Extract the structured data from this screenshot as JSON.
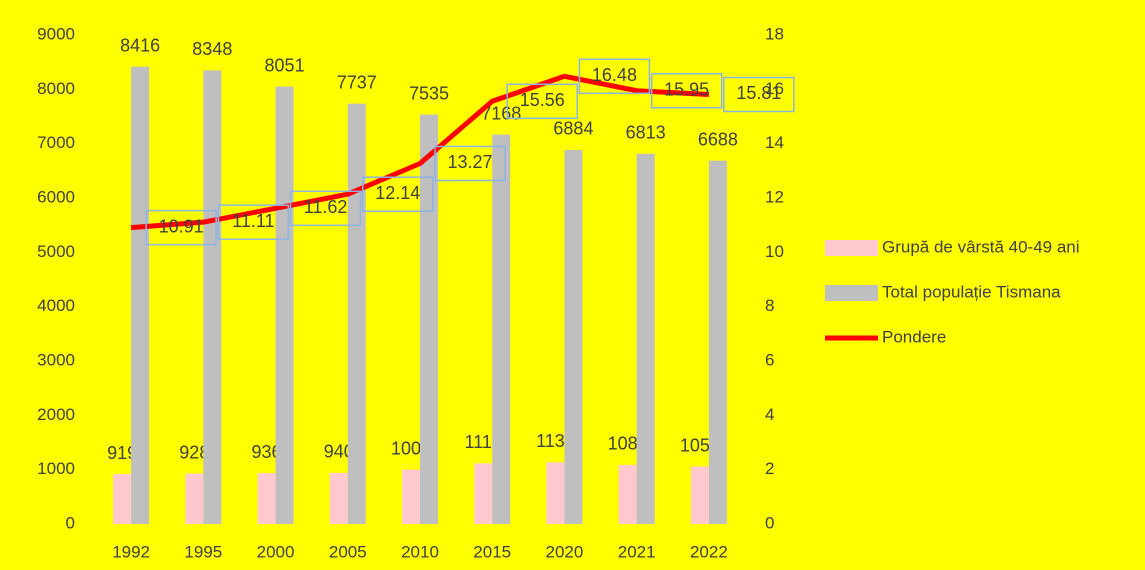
{
  "chart_data": {
    "type": "bar-line",
    "categories": [
      "1992",
      "1995",
      "2000",
      "2005",
      "2010",
      "2015",
      "2020",
      "2021",
      "2022"
    ],
    "series": [
      {
        "name": "Grupă de vârstă 40-49 ani",
        "color": "#ffc7ce",
        "type": "bar",
        "values": [
          919,
          928,
          936,
          940,
          1000,
          1116,
          1135,
          1087,
          1058
        ]
      },
      {
        "name": "Total populație Tismana",
        "color": "#bfbfbf",
        "type": "bar",
        "values": [
          8416,
          8348,
          8051,
          7737,
          7535,
          7168,
          6884,
          6813,
          6688
        ]
      },
      {
        "name": "Pondere",
        "color": "#ff0000",
        "type": "line",
        "axis": "y2",
        "values": [
          10.91,
          11.11,
          11.62,
          12.14,
          13.27,
          15.56,
          16.48,
          15.95,
          15.81
        ]
      }
    ],
    "ylim": [
      0,
      9000
    ],
    "yticks": [
      0,
      1000,
      2000,
      3000,
      4000,
      5000,
      6000,
      7000,
      8000,
      9000
    ],
    "y2lim": [
      0,
      18
    ],
    "y2ticks": [
      0,
      2,
      4,
      6,
      8,
      10,
      12,
      14,
      16,
      18
    ],
    "legend": "right"
  }
}
